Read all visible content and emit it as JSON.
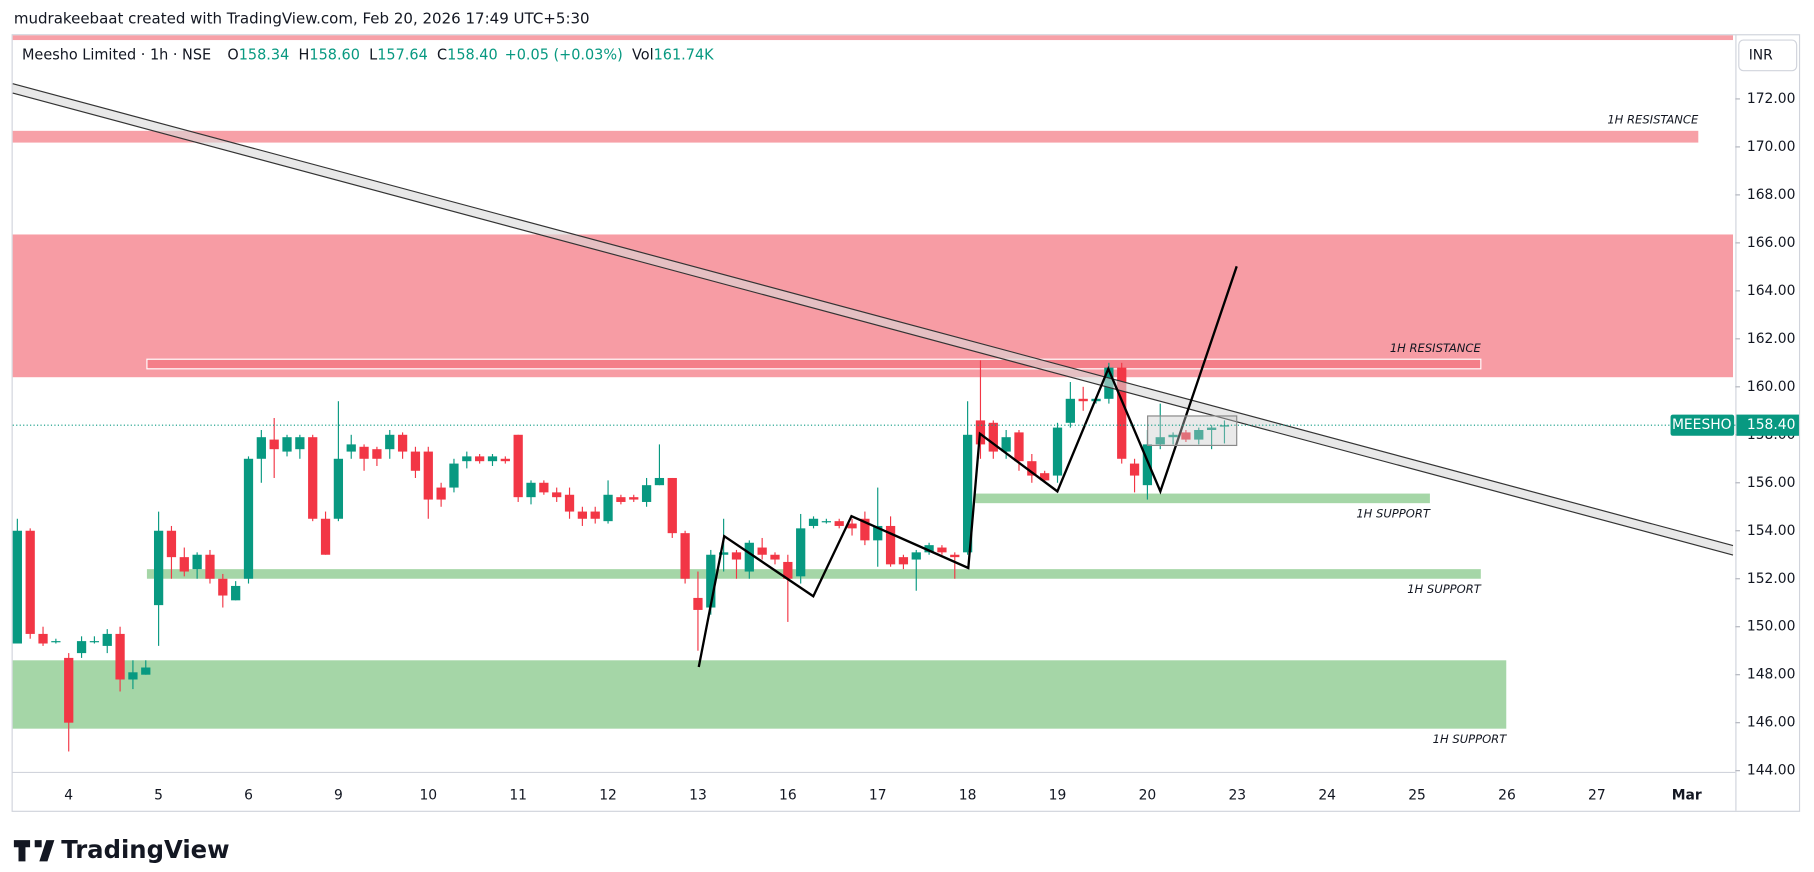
{
  "attribution": "mudrakeebaat created with TradingView.com, Feb 20, 2026 17:49 UTC+5:30",
  "brand": "TradingView",
  "chart_data": {
    "type": "candlestick",
    "symbol": "Meesho Limited · 1h · NSE",
    "ohlc_fields": [
      {
        "key": "O",
        "value": "158.34"
      },
      {
        "key": "H",
        "value": "158.60"
      },
      {
        "key": "L",
        "value": "157.64"
      },
      {
        "key": "C",
        "value": "158.40"
      }
    ],
    "change": "+0.05 (+0.03%)",
    "volume": {
      "key": "Vol",
      "value": "161.74K"
    },
    "currency": "INR",
    "up_color": "#089981",
    "down_color": "#f23645",
    "ylim": [
      142.33,
      174.65
    ],
    "yticks": [
      {
        "value": 144,
        "label": "144.00"
      },
      {
        "value": 146,
        "label": "146.00"
      },
      {
        "value": 148,
        "label": "148.00"
      },
      {
        "value": 150,
        "label": "150.00"
      },
      {
        "value": 152,
        "label": "152.00"
      },
      {
        "value": 154,
        "label": "154.00"
      },
      {
        "value": 156,
        "label": "156.00"
      },
      {
        "value": 158,
        "label": "158.00"
      },
      {
        "value": 160,
        "label": "160.00"
      },
      {
        "value": 162,
        "label": "162.00"
      },
      {
        "value": 164,
        "label": "164.00"
      },
      {
        "value": 166,
        "label": "166.00"
      },
      {
        "value": 168,
        "label": "168.00"
      },
      {
        "value": 170,
        "label": "170.00"
      },
      {
        "value": 172,
        "label": "172.00"
      }
    ],
    "categories": [
      null,
      null,
      null,
      null,
      "4",
      null,
      null,
      null,
      null,
      null,
      null,
      "5",
      null,
      null,
      null,
      null,
      null,
      null,
      "6",
      null,
      null,
      null,
      null,
      null,
      null,
      "9",
      null,
      null,
      null,
      null,
      null,
      null,
      "10",
      null,
      null,
      null,
      null,
      null,
      null,
      "11",
      null,
      null,
      null,
      null,
      null,
      null,
      "12",
      null,
      null,
      null,
      null,
      null,
      null,
      "13",
      null,
      null,
      null,
      null,
      null,
      null,
      "16",
      null,
      null,
      null,
      null,
      null,
      null,
      "17",
      null,
      null,
      null,
      null,
      null,
      null,
      "18",
      null,
      null,
      null,
      null,
      null,
      null,
      "19",
      null,
      null,
      null,
      null,
      null,
      null,
      "20",
      null,
      null,
      null,
      null,
      null,
      null,
      "23",
      null,
      null,
      null,
      null,
      null,
      null,
      "24",
      null,
      null,
      null,
      null,
      null,
      null,
      "25",
      null,
      null,
      null,
      null,
      null,
      null,
      "26",
      null,
      null,
      null,
      null,
      null,
      null,
      "27",
      null,
      null,
      null,
      null,
      null,
      null,
      "Mar",
      null,
      null,
      null,
      null
    ],
    "open": [
      149.3,
      154,
      149.7,
      149.4,
      148.7,
      148.9,
      149.4,
      149.2,
      149.7,
      147.8,
      148.0,
      150.9,
      154,
      152.9,
      152.4,
      153,
      152.0,
      151.1,
      152,
      157,
      157.8,
      157.3,
      157.4,
      157.9,
      154.5,
      154.5,
      157.3,
      157.5,
      157.4,
      157.4,
      158,
      157.3,
      157.3,
      155.8,
      155.8,
      156.9,
      157.1,
      156.9,
      157,
      158,
      155.4,
      156,
      155.6,
      155.5,
      154.8,
      154.8,
      154.4,
      155.4,
      155.4,
      155.2,
      155.9,
      156.2,
      153.9,
      151.2,
      150.8,
      153,
      153.1,
      152.3,
      153.3,
      153,
      152.7,
      152.1,
      154.2,
      154.4,
      154.4,
      154.3,
      154.5,
      153.6,
      154.2,
      152.9,
      152.8,
      153.1,
      153.3,
      153,
      153.1,
      158.6,
      158.5,
      157.3,
      158.1,
      156.9,
      156.4,
      156.3,
      158.5,
      159.5,
      159.4,
      159.5,
      160.8,
      156.8,
      155.9,
      157.6,
      157.9,
      158.1,
      157.8,
      158.2,
      158.34,
      null,
      null,
      null,
      null,
      null,
      null,
      null,
      null,
      null,
      null,
      null,
      null,
      null,
      null,
      null,
      null,
      null,
      null,
      null,
      null,
      null,
      null,
      null,
      null,
      null,
      null,
      null,
      null,
      null,
      null,
      null,
      null,
      null,
      null,
      null,
      null,
      null,
      null,
      null,
      null
    ],
    "high": [
      154.5,
      154.1,
      150,
      149.5,
      148.9,
      149.6,
      149.6,
      149.9,
      150,
      148.6,
      148.6,
      154.8,
      154.2,
      153.3,
      153.1,
      153.2,
      152.2,
      151.9,
      157.1,
      158.2,
      158.7,
      158,
      158,
      158,
      154.8,
      159.4,
      158,
      157.6,
      157.5,
      158.2,
      158.1,
      157.5,
      157.5,
      156,
      157,
      157.3,
      157.2,
      157.2,
      157.1,
      158,
      156.1,
      156.1,
      155.8,
      155.8,
      155,
      155,
      156.1,
      155.5,
      155.5,
      156.2,
      157.6,
      156.2,
      154,
      152.3,
      153.2,
      154.5,
      153.2,
      153.6,
      153.7,
      153.1,
      153,
      154.7,
      154.6,
      154.5,
      154.5,
      154.5,
      154.8,
      155.8,
      154.6,
      153,
      153.2,
      153.5,
      153.4,
      153.1,
      159.4,
      161.1,
      158.6,
      158.2,
      158.2,
      157.2,
      156.5,
      158.5,
      160.2,
      160,
      159.6,
      161,
      161,
      157,
      158.2,
      159.3,
      158.1,
      158.2,
      158.3,
      158.4,
      158.6,
      null,
      null,
      null,
      null,
      null,
      null,
      null,
      null,
      null,
      null,
      null,
      null,
      null,
      null,
      null,
      null,
      null,
      null,
      null,
      null,
      null,
      null,
      null,
      null,
      null,
      null,
      null,
      null,
      null,
      null,
      null,
      null,
      null,
      null,
      null,
      null,
      null,
      null,
      null,
      null
    ],
    "low": [
      149.3,
      149.5,
      149.2,
      149.3,
      144.8,
      148.7,
      149.3,
      148.9,
      147.3,
      147.4,
      148,
      149.2,
      152,
      152.1,
      152,
      151.8,
      150.8,
      151.1,
      151.8,
      156,
      156.2,
      157.1,
      157,
      154.4,
      153,
      154.4,
      157,
      156.5,
      156.7,
      157,
      157,
      156.2,
      154.5,
      155,
      155.6,
      156.6,
      156.8,
      156.7,
      156.8,
      155.2,
      155.1,
      155.5,
      155.2,
      154.5,
      154.2,
      154.3,
      154.3,
      155.1,
      155.2,
      155,
      155.9,
      153.7,
      151.8,
      149,
      150.5,
      152.3,
      152,
      152,
      152.8,
      152.6,
      150.2,
      151.8,
      154.1,
      154.3,
      154.1,
      153.8,
      153.4,
      152.5,
      152.5,
      152.4,
      151.5,
      153,
      153,
      152,
      153,
      157,
      157,
      157,
      156.5,
      156,
      156,
      156,
      158.3,
      159,
      159.3,
      159.3,
      156.8,
      155.6,
      155.3,
      157.4,
      157.6,
      157.7,
      157.6,
      157.4,
      157.64,
      null,
      null,
      null,
      null,
      null,
      null,
      null,
      null,
      null,
      null,
      null,
      null,
      null,
      null,
      null,
      null,
      null,
      null,
      null,
      null,
      null,
      null,
      null,
      null,
      null,
      null,
      null,
      null,
      null,
      null,
      null,
      null,
      null,
      null,
      null,
      null,
      null,
      null,
      null,
      null
    ],
    "close": [
      154,
      149.7,
      149.3,
      149.4,
      146,
      149.4,
      149.4,
      149.7,
      147.8,
      148.1,
      148.3,
      154,
      152.9,
      152.3,
      153,
      152.0,
      151.3,
      151.7,
      157,
      157.9,
      157.4,
      157.9,
      157.9,
      154.5,
      153,
      157,
      157.6,
      157,
      157,
      158,
      157.3,
      156.5,
      155.3,
      155.3,
      156.8,
      157.1,
      156.9,
      157.1,
      156.9,
      155.4,
      156,
      155.6,
      155.4,
      154.8,
      154.5,
      154.5,
      155.5,
      155.2,
      155.3,
      155.9,
      156.2,
      153.9,
      152,
      150.7,
      153,
      153.1,
      152.8,
      153.5,
      153,
      152.8,
      152,
      154.1,
      154.5,
      154.4,
      154.2,
      154.1,
      153.6,
      154.2,
      152.6,
      152.6,
      153.1,
      153.4,
      153.1,
      152.9,
      158,
      157.6,
      157.3,
      157.9,
      156.9,
      156.3,
      156.1,
      158.3,
      159.5,
      159.4,
      159.5,
      160.8,
      157,
      156.3,
      157.6,
      157.9,
      158,
      157.8,
      158.2,
      158.3,
      158.4,
      null,
      null,
      null,
      null,
      null,
      null,
      null,
      null,
      null,
      null,
      null,
      null,
      null,
      null,
      null,
      null,
      null,
      null,
      null,
      null,
      null,
      null,
      null,
      null,
      null,
      null,
      null,
      null,
      null,
      null,
      null,
      null,
      null,
      null,
      null,
      null,
      null,
      null,
      null,
      null
    ],
    "price_tag": {
      "symbol": "MEESHO",
      "value": 158.4,
      "label": "158.40"
    },
    "zones": [
      {
        "label": "1H RESISTANCE",
        "top": 170.67,
        "bottom": 170.18,
        "color": "#f7a0a7"
      },
      {
        "top": 166.35,
        "bottom": 160.4,
        "color": "#f79ca4"
      },
      {
        "label": "1H RESISTANCE",
        "top": 161.15,
        "bottom": 160.75,
        "color": "#f47f89"
      },
      {
        "label": "1H SUPPORT",
        "top": 155.55,
        "bottom": 155.15,
        "color": "#a5d6a7"
      },
      {
        "label": "1H SUPPORT",
        "top": 152.4,
        "bottom": 152.0,
        "color": "#a5d6a7"
      },
      {
        "label": "1H SUPPORT",
        "top": 148.6,
        "bottom": 145.75,
        "color": "#a5d6a7"
      }
    ]
  }
}
